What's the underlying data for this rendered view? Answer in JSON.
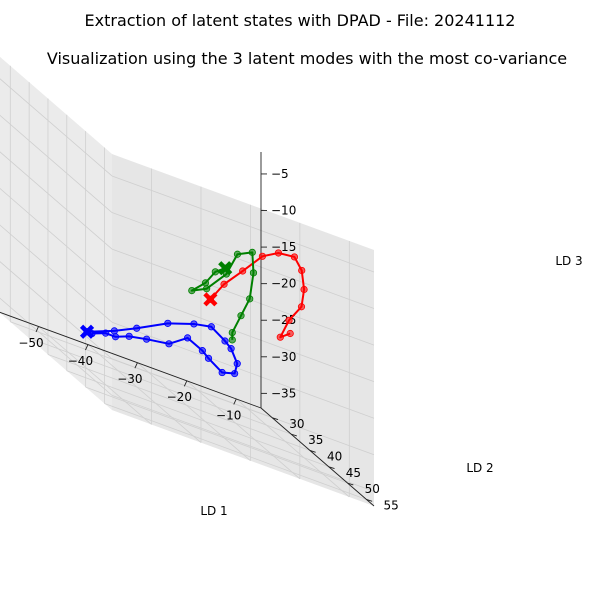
{
  "chart_data": {
    "type": "scatter3d",
    "suptitle": "Extraction of latent states with DPAD - File: 20241112",
    "title": "Visualization using the 3 latent modes with the most co-variance",
    "xlabel": "LD 1",
    "ylabel": "LD 2",
    "zlabel": "LD 3",
    "xlim": [
      -58,
      -5
    ],
    "ylim": [
      27,
      57
    ],
    "zlim": [
      -37,
      -2
    ],
    "xticks": [
      -50,
      -40,
      -30,
      -20,
      -10
    ],
    "yticks": [
      30,
      35,
      40,
      45,
      50,
      55
    ],
    "zticks": [
      -35,
      -30,
      -25,
      -20,
      -15,
      -10,
      -5
    ],
    "grid": true,
    "series": [
      {
        "color": "#0000ff",
        "start_marker": "X",
        "points": [
          [
            -44,
            32,
            -34
          ],
          [
            -40,
            34,
            -32
          ],
          [
            -37,
            36,
            -30
          ],
          [
            -33,
            39,
            -27
          ],
          [
            -30,
            42,
            -25
          ],
          [
            -28,
            44,
            -24
          ],
          [
            -26,
            45,
            -25
          ],
          [
            -24,
            44,
            -26
          ],
          [
            -22,
            43,
            -28
          ],
          [
            -21,
            41,
            -30
          ],
          [
            -22,
            39,
            -31
          ],
          [
            -24,
            38,
            -30
          ],
          [
            -26,
            39,
            -29
          ],
          [
            -29,
            39,
            -28
          ],
          [
            -32,
            38,
            -30
          ],
          [
            -35,
            36,
            -31
          ],
          [
            -37,
            34,
            -32
          ],
          [
            -39,
            33,
            -33
          ],
          [
            -41,
            33,
            -33
          ],
          [
            -43,
            32,
            -34
          ]
        ]
      },
      {
        "color": "#ff0000",
        "start_marker": "X",
        "points": [
          [
            -32,
            49,
            -19
          ],
          [
            -30,
            50,
            -16
          ],
          [
            -27,
            51,
            -13
          ],
          [
            -23,
            51,
            -10
          ],
          [
            -19,
            50,
            -9
          ],
          [
            -15,
            49,
            -9
          ],
          [
            -12,
            47,
            -11
          ],
          [
            -10,
            45,
            -14
          ],
          [
            -9,
            43,
            -17
          ],
          [
            -10,
            41,
            -20
          ],
          [
            -11,
            40,
            -23
          ],
          [
            -9,
            40,
            -22
          ]
        ]
      },
      {
        "color": "#008000",
        "start_marker": "X",
        "points": [
          [
            -29,
            49,
            -14
          ],
          [
            -31,
            49,
            -15
          ],
          [
            -33,
            49,
            -17
          ],
          [
            -35,
            48,
            -19
          ],
          [
            -32,
            48,
            -18
          ],
          [
            -28,
            48,
            -15
          ],
          [
            -25,
            47,
            -12
          ],
          [
            -22,
            47,
            -11
          ],
          [
            -21,
            46,
            -14
          ],
          [
            -21,
            45,
            -18
          ],
          [
            -22,
            44,
            -21
          ],
          [
            -23,
            43,
            -24
          ],
          [
            -23,
            43,
            -25
          ]
        ]
      }
    ]
  }
}
